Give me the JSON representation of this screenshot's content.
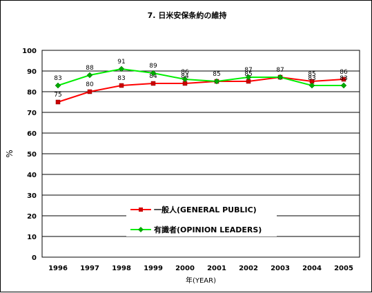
{
  "chart_data": {
    "type": "line",
    "title": "7. 日米安保条約の維持",
    "xlabel": "年(YEAR)",
    "ylabel": "%",
    "ylim": [
      0,
      100
    ],
    "yticks": [
      0,
      10,
      20,
      30,
      40,
      50,
      60,
      70,
      80,
      90,
      100
    ],
    "grid": true,
    "legend_placement": "lower-right",
    "x": [
      "1996",
      "1997",
      "1998",
      "1999",
      "2000",
      "2001",
      "2002",
      "2003",
      "2004",
      "2005"
    ],
    "series": [
      {
        "name": "一般人(GENERAL PUBLIC)",
        "color": "#ff0000",
        "marker_color": "#cc0000",
        "marker": "square",
        "values": [
          75,
          80,
          83,
          84,
          84,
          85,
          85,
          87,
          85,
          86
        ]
      },
      {
        "name": "有識者(OPINION LEADERS)",
        "color": "#00ee00",
        "marker_color": "#00aa00",
        "marker": "diamond",
        "values": [
          83,
          88,
          91,
          89,
          86,
          85,
          87,
          87,
          83,
          83
        ]
      }
    ]
  }
}
